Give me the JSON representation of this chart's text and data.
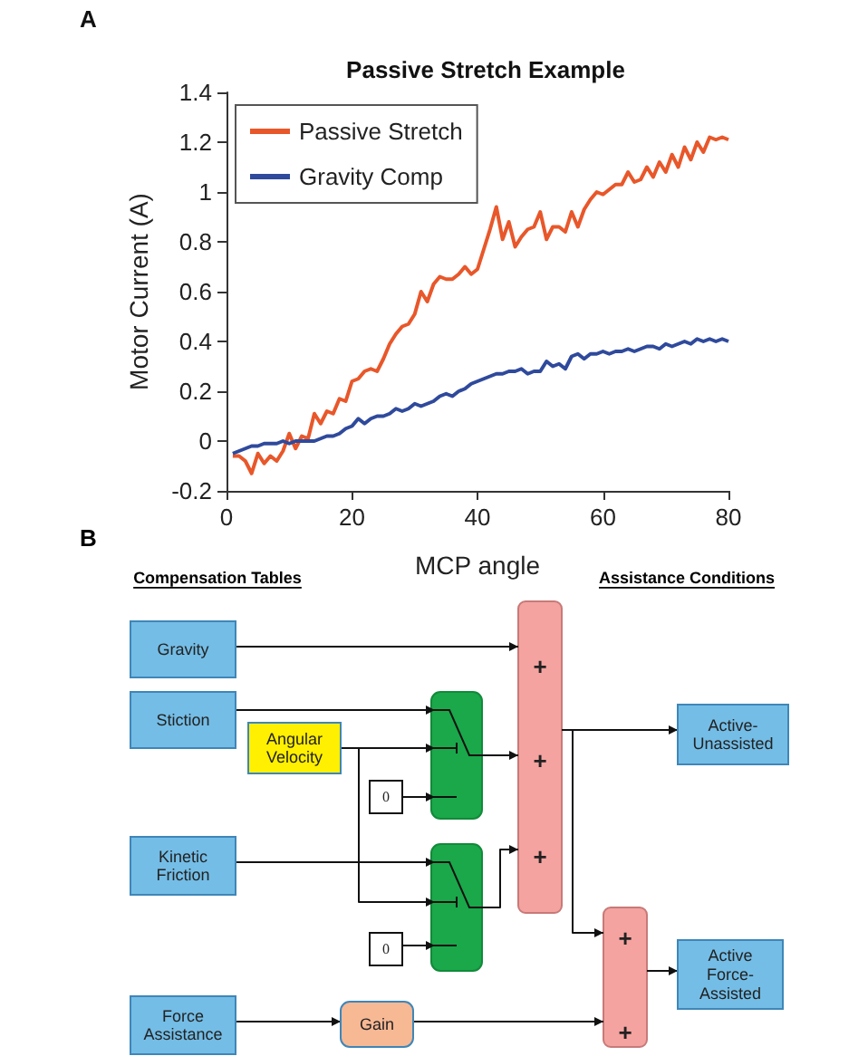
{
  "chart_data": {
    "type": "line",
    "title": "Passive Stretch Example",
    "xlabel": "MCP angle",
    "ylabel": "Motor Current (A)",
    "x": [
      1,
      2,
      3,
      4,
      5,
      6,
      7,
      8,
      9,
      10,
      11,
      12,
      13,
      14,
      15,
      16,
      17,
      18,
      19,
      20,
      21,
      22,
      23,
      24,
      25,
      26,
      27,
      28,
      29,
      30,
      31,
      32,
      33,
      34,
      35,
      36,
      37,
      38,
      39,
      40,
      41,
      42,
      43,
      44,
      45,
      46,
      47,
      48,
      49,
      50,
      51,
      52,
      53,
      54,
      55,
      56,
      57,
      58,
      59,
      60,
      61,
      62,
      63,
      64,
      65,
      66,
      67,
      68,
      69,
      70,
      71,
      72,
      73,
      74,
      75,
      76,
      77,
      78,
      79,
      80
    ],
    "series": [
      {
        "name": "Passive Stretch",
        "color": "#e8572a",
        "values": [
          -0.06,
          -0.06,
          -0.08,
          -0.13,
          -0.05,
          -0.09,
          -0.06,
          -0.08,
          -0.04,
          0.03,
          -0.03,
          0.02,
          0.01,
          0.11,
          0.07,
          0.12,
          0.11,
          0.17,
          0.16,
          0.24,
          0.25,
          0.28,
          0.29,
          0.28,
          0.33,
          0.39,
          0.43,
          0.46,
          0.47,
          0.51,
          0.6,
          0.56,
          0.63,
          0.66,
          0.65,
          0.65,
          0.67,
          0.7,
          0.67,
          0.69,
          0.77,
          0.85,
          0.94,
          0.81,
          0.88,
          0.78,
          0.82,
          0.85,
          0.86,
          0.92,
          0.81,
          0.86,
          0.86,
          0.84,
          0.92,
          0.86,
          0.93,
          0.97,
          1.0,
          0.99,
          1.01,
          1.03,
          1.03,
          1.08,
          1.04,
          1.05,
          1.1,
          1.06,
          1.12,
          1.08,
          1.15,
          1.1,
          1.18,
          1.13,
          1.2,
          1.16,
          1.22,
          1.21,
          1.22,
          1.21
        ]
      },
      {
        "name": "Gravity Comp",
        "color": "#2f4a9c",
        "values": [
          -0.05,
          -0.04,
          -0.03,
          -0.02,
          -0.02,
          -0.01,
          -0.01,
          -0.01,
          0.0,
          -0.01,
          0.0,
          0.0,
          0.0,
          0.0,
          0.01,
          0.02,
          0.02,
          0.03,
          0.05,
          0.06,
          0.09,
          0.07,
          0.09,
          0.1,
          0.1,
          0.11,
          0.13,
          0.12,
          0.13,
          0.15,
          0.14,
          0.15,
          0.16,
          0.18,
          0.19,
          0.18,
          0.2,
          0.21,
          0.23,
          0.24,
          0.25,
          0.26,
          0.27,
          0.27,
          0.28,
          0.28,
          0.29,
          0.27,
          0.28,
          0.28,
          0.32,
          0.3,
          0.31,
          0.29,
          0.34,
          0.35,
          0.33,
          0.35,
          0.35,
          0.36,
          0.35,
          0.36,
          0.36,
          0.37,
          0.36,
          0.37,
          0.38,
          0.38,
          0.37,
          0.39,
          0.38,
          0.39,
          0.4,
          0.39,
          0.41,
          0.4,
          0.41,
          0.4,
          0.41,
          0.4
        ]
      }
    ],
    "xlim": [
      0,
      80
    ],
    "xticks": [
      0,
      20,
      40,
      60,
      80
    ],
    "ylim": [
      -0.2,
      1.4
    ],
    "yticks": [
      -0.2,
      0,
      0.2,
      0.4,
      0.6,
      0.8,
      1,
      1.2,
      1.4
    ],
    "grid": false,
    "legend": "top left",
    "marker": "none",
    "line_style": "solid",
    "annotations": [
      "A",
      "B",
      "Compensation Tables",
      "Assistance Conditions",
      "Gravity",
      "Stiction",
      "Angular\nVelocity",
      "0",
      "Kinetic\nFriction",
      "0",
      "Force\nAssistance",
      "Gain",
      "+",
      "+",
      "+",
      "+",
      "+",
      "Active-\nUnassisted",
      "Active\nForce-\nAssisted"
    ]
  }
}
